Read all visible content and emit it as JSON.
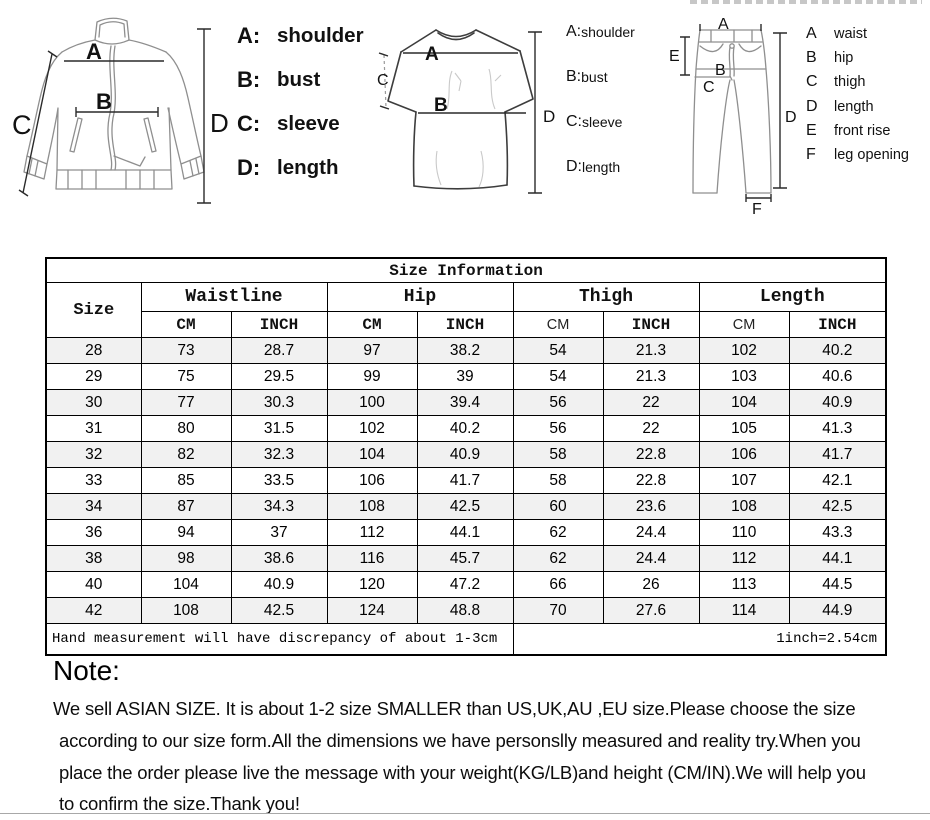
{
  "diagrams": {
    "jacket": {
      "marks": {
        "A": "A",
        "B": "B",
        "C": "C",
        "D": "D"
      },
      "legend": [
        {
          "key": "A:",
          "label": "shoulder"
        },
        {
          "key": "B:",
          "label": "bust"
        },
        {
          "key": "C:",
          "label": "sleeve"
        },
        {
          "key": "D:",
          "label": "length"
        }
      ]
    },
    "tshirt": {
      "marks": {
        "A": "A",
        "B": "B",
        "C": "C",
        "D": "D"
      },
      "legend": [
        {
          "key": "A:",
          "label": "shoulder"
        },
        {
          "key": "B:",
          "label": "bust"
        },
        {
          "key": "C:",
          "label": "sleeve"
        },
        {
          "key": "D:",
          "label": "length"
        }
      ]
    },
    "pants": {
      "marks": {
        "A": "A",
        "B": "B",
        "C": "C",
        "D": "D",
        "E": "E",
        "F": "F"
      },
      "legend": [
        {
          "key": "A",
          "label": "waist"
        },
        {
          "key": "B",
          "label": "hip"
        },
        {
          "key": "C",
          "label": "thigh"
        },
        {
          "key": "D",
          "label": "length"
        },
        {
          "key": "E",
          "label": "front rise"
        },
        {
          "key": "F",
          "label": "leg opening"
        }
      ]
    }
  },
  "table": {
    "title": "Size Information",
    "col_size": "Size",
    "groups": [
      "Waistline",
      "Hip",
      "Thigh",
      "Length"
    ],
    "unit_cm": "CM",
    "unit_inch": "INCH",
    "rows": [
      [
        "28",
        "73",
        "28.7",
        "97",
        "38.2",
        "54",
        "21.3",
        "102",
        "40.2"
      ],
      [
        "29",
        "75",
        "29.5",
        "99",
        "39",
        "54",
        "21.3",
        "103",
        "40.6"
      ],
      [
        "30",
        "77",
        "30.3",
        "100",
        "39.4",
        "56",
        "22",
        "104",
        "40.9"
      ],
      [
        "31",
        "80",
        "31.5",
        "102",
        "40.2",
        "56",
        "22",
        "105",
        "41.3"
      ],
      [
        "32",
        "82",
        "32.3",
        "104",
        "40.9",
        "58",
        "22.8",
        "106",
        "41.7"
      ],
      [
        "33",
        "85",
        "33.5",
        "106",
        "41.7",
        "58",
        "22.8",
        "107",
        "42.1"
      ],
      [
        "34",
        "87",
        "34.3",
        "108",
        "42.5",
        "60",
        "23.6",
        "108",
        "42.5"
      ],
      [
        "36",
        "94",
        "37",
        "112",
        "44.1",
        "62",
        "24.4",
        "110",
        "43.3"
      ],
      [
        "38",
        "98",
        "38.6",
        "116",
        "45.7",
        "62",
        "24.4",
        "112",
        "44.1"
      ],
      [
        "40",
        "104",
        "40.9",
        "120",
        "47.2",
        "66",
        "26",
        "113",
        "44.5"
      ],
      [
        "42",
        "108",
        "42.5",
        "124",
        "48.8",
        "70",
        "27.6",
        "114",
        "44.9"
      ]
    ],
    "footnote_left": "Hand measurement will have discrepancy of about 1-3cm",
    "footnote_right": "1inch=2.54cm"
  },
  "note": {
    "heading": "Note:",
    "lines": [
      "We sell ASIAN SIZE. It is about 1-2 size SMALLER than US,UK,AU ,EU size.Please choose the size",
      "according to our size form.All the dimensions we have personslly measured and reality try.When you",
      "place the order please live the message with your weight(KG/LB)and height (CM/IN).We will help you",
      "to confirm the size.Thank you!"
    ]
  }
}
